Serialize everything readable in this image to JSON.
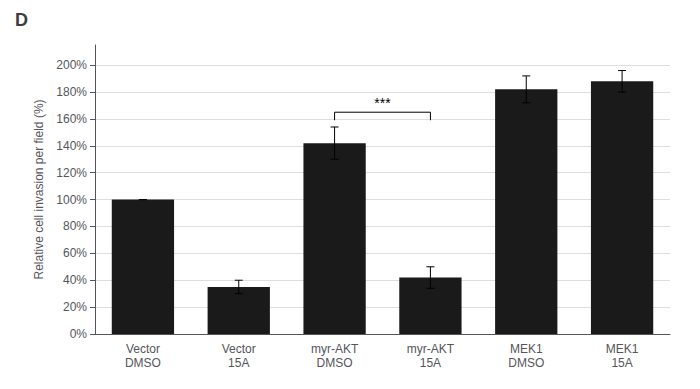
{
  "chart_data": {
    "type": "bar",
    "title": "D",
    "categories": [
      "Vector\nDMSO",
      "Vector\n15A",
      "myr-AKT\nDMSO",
      "myr-AKT\n15A",
      "MEK1\nDMSO",
      "MEK1\n15A"
    ],
    "values": [
      100,
      35,
      142,
      42,
      182,
      188
    ],
    "errors": [
      0,
      5,
      12,
      8,
      10,
      8
    ],
    "color": "#1a1a1a",
    "ylabel": "Relative cell invasion per field (%)",
    "ylim": [
      0,
      215
    ],
    "yticks": [
      {
        "value": 0,
        "label": "0%"
      },
      {
        "value": 20,
        "label": "20%"
      },
      {
        "value": 40,
        "label": "40%"
      },
      {
        "value": 60,
        "label": "60%"
      },
      {
        "value": 80,
        "label": "80%"
      },
      {
        "value": 100,
        "label": "100%"
      },
      {
        "value": 120,
        "label": "120%"
      },
      {
        "value": 140,
        "label": "140%"
      },
      {
        "value": 160,
        "label": "160%"
      },
      {
        "value": 180,
        "label": "180%"
      },
      {
        "value": 200,
        "label": "200%"
      }
    ],
    "grid": true,
    "annotations": [
      {
        "text": "***",
        "from": "myr-AKT\nDMSO",
        "to": "myr-AKT\n15A",
        "y": 165
      }
    ]
  }
}
